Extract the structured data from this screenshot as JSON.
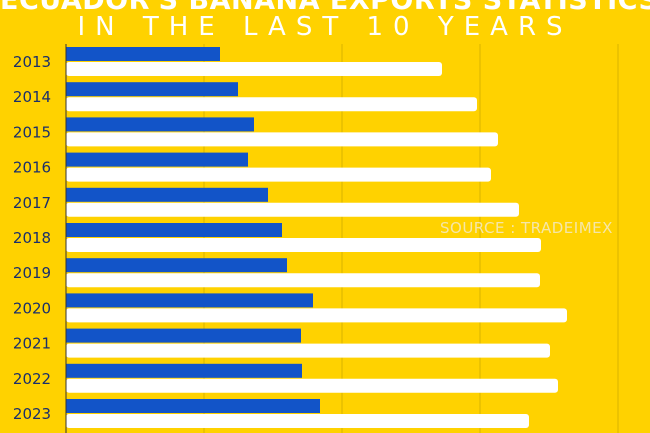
{
  "header": {
    "title": "ECUADOR'S BANANA EXPORTS STATISTICS",
    "subtitle": "IN THE LAST 10 YEARS"
  },
  "source_note": "SOURCE : TRADEIMEX",
  "colors": {
    "background": "#FFD200",
    "series_blue": "#1254C8",
    "series_white": "#FFFFFF",
    "grid": "#D9B400"
  },
  "chart_data": {
    "type": "bar",
    "orientation": "horizontal",
    "categories": [
      "2013",
      "2014",
      "2015",
      "2016",
      "2017",
      "2018",
      "2019",
      "2020",
      "2021",
      "2022",
      "2023"
    ],
    "series": [
      {
        "values": [
          160,
          178,
          194,
          188,
          208,
          222,
          227,
          253,
          241,
          242,
          260
        ]
      },
      {
        "values": [
          376,
          411,
          432,
          425,
          453,
          475,
          474,
          501,
          484,
          492,
          463
        ]
      }
    ],
    "xlim": [
      0,
      600
    ],
    "grid": true
  }
}
